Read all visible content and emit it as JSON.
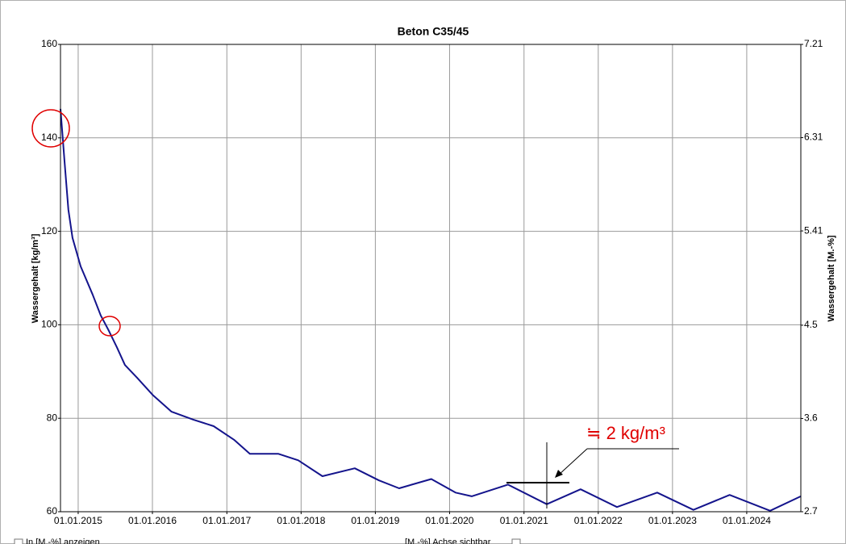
{
  "chart_data": {
    "type": "line",
    "title": "Beton C35/45",
    "ylabel": "Wassergehalt [kg/m³]",
    "y2label": "Wassergehalt [M.-%]",
    "annotation": "≒ 2 kg/m³",
    "controls": [
      "In [M.-%] anzeigen",
      "[M.-%] Achse sichtbar"
    ],
    "x": [
      "2014-10-06",
      "2014-10-26",
      "2014-11-14",
      "2014-12-04",
      "2015-01-13",
      "2015-03-13",
      "2015-04-22",
      "2015-06-01",
      "2015-07-10",
      "2015-08-19",
      "2015-10-17",
      "2016-01-04",
      "2016-04-04",
      "2016-07-20",
      "2016-10-28",
      "2017-02-05",
      "2017-04-24",
      "2017-09-10",
      "2017-12-18",
      "2018-04-16",
      "2018-09-22",
      "2019-01-19",
      "2019-04-28",
      "2019-10-03",
      "2020-01-30",
      "2020-04-19",
      "2020-10-14",
      "2021-04-23",
      "2021-10-06",
      "2022-04-03",
      "2022-10-18",
      "2023-04-14",
      "2023-10-09",
      "2024-04-25",
      "2024-09-23"
    ],
    "series": [
      {
        "name": "Wassergehalt",
        "color": "#14148c",
        "values": [
          146.2,
          135,
          124.6,
          118.6,
          112.5,
          106.5,
          102,
          98.7,
          95.2,
          91.4,
          88.7,
          84.9,
          81.4,
          79.7,
          78.3,
          75.4,
          72.4,
          72.4,
          71,
          67.6,
          69.3,
          66.7,
          65,
          67,
          64.1,
          63.3,
          65.8,
          61.6,
          64.8,
          61,
          64.1,
          60.4,
          63.6,
          60.2,
          63.3
        ]
      }
    ],
    "xlim": [
      "2014-10-06",
      "2024-09-23"
    ],
    "xticks": [
      {
        "value": "2015-01-01",
        "label": "01.01.2015"
      },
      {
        "value": "2016-01-01",
        "label": "01.01.2016"
      },
      {
        "value": "2017-01-01",
        "label": "01.01.2017"
      },
      {
        "value": "2018-01-01",
        "label": "01.01.2018"
      },
      {
        "value": "2019-01-01",
        "label": "01.01.2019"
      },
      {
        "value": "2020-01-01",
        "label": "01.01.2020"
      },
      {
        "value": "2021-01-01",
        "label": "01.01.2021"
      },
      {
        "value": "2022-01-01",
        "label": "01.01.2022"
      },
      {
        "value": "2023-01-01",
        "label": "01.01.2023"
      },
      {
        "value": "2024-01-01",
        "label": "01.01.2024"
      }
    ],
    "ylim": [
      60,
      160
    ],
    "yticks": [
      60,
      80,
      100,
      120,
      140,
      160
    ],
    "y2lim": [
      2.7,
      7.21
    ],
    "y2ticks": [
      2.7,
      3.6,
      4.5,
      5.41,
      6.31,
      7.21
    ],
    "grid": true
  }
}
